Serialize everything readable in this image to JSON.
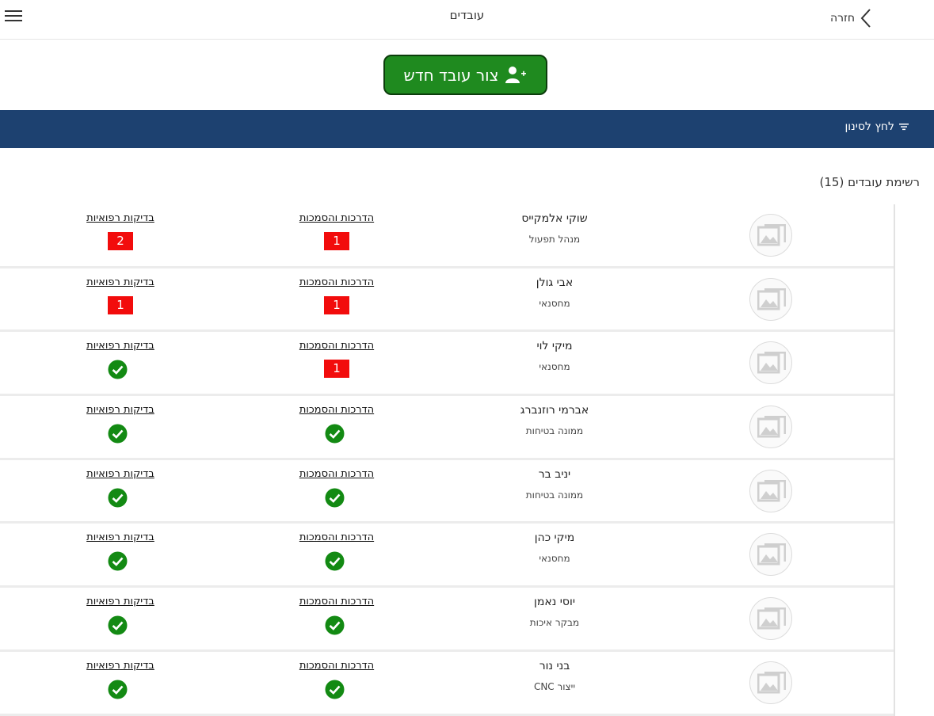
{
  "header": {
    "title": "עובדים",
    "back_label": "חזרה"
  },
  "actions": {
    "new_employee": "צור עובד חדש",
    "filter": "לחץ לסינון"
  },
  "list": {
    "title": "רשימת עובדים (15)",
    "columns": {
      "trainings": "הדרכות והסמכות",
      "medical": "בדיקות רפואיות"
    },
    "employees": [
      {
        "name": "שוקי אלמקייס",
        "role": "מנהל תפעול",
        "trainings_pending": "1",
        "medical_pending": "2"
      },
      {
        "name": "אבי גולן",
        "role": "מחסנאי",
        "trainings_pending": "1",
        "medical_pending": "1"
      },
      {
        "name": "מיקי לוי",
        "role": "מחסנאי",
        "trainings_pending": "1",
        "medical_pending": null
      },
      {
        "name": "אברמי רוזנברג",
        "role": "ממונה בטיחות",
        "trainings_pending": null,
        "medical_pending": null
      },
      {
        "name": "יניב בר",
        "role": "ממונה בטיחות",
        "trainings_pending": null,
        "medical_pending": null
      },
      {
        "name": "מיקי כהן",
        "role": "מחסנאי",
        "trainings_pending": null,
        "medical_pending": null
      },
      {
        "name": "יוסי נאמן",
        "role": "מבקר איכות",
        "trainings_pending": null,
        "medical_pending": null
      },
      {
        "name": "בני נור",
        "role": "ייצור CNC",
        "trainings_pending": null,
        "medical_pending": null
      }
    ]
  },
  "colors": {
    "accent_green": "#1f8a1f",
    "nav_blue": "#1d4170",
    "alert_red": "#f20c0c"
  },
  "icons": {
    "menu": "hamburger-icon",
    "back": "chevron-left-icon",
    "add_user": "user-plus-icon",
    "filter": "filter-icon",
    "avatar": "image-placeholder-icon",
    "ok": "check-circle-icon"
  }
}
